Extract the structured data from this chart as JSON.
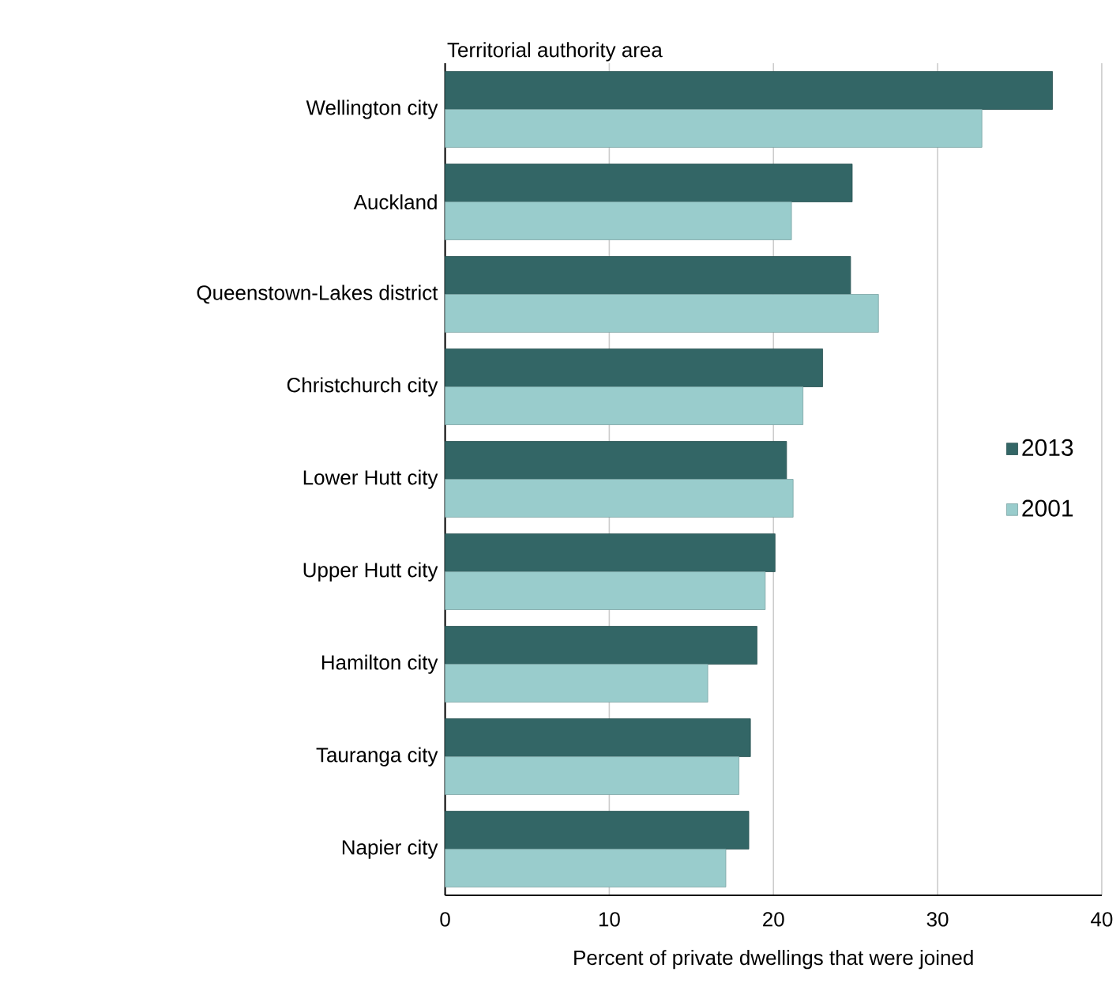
{
  "chart_data": {
    "type": "bar",
    "orientation": "horizontal",
    "ylabel": "Territorial authority area",
    "xlabel": "Percent of private dwellings that were joined",
    "categories": [
      "Wellington city",
      "Auckland",
      "Queenstown-Lakes district",
      "Christchurch city",
      "Lower Hutt city",
      "Upper Hutt city",
      "Hamilton city",
      "Tauranga city",
      "Napier city"
    ],
    "series": [
      {
        "name": "2013",
        "color": "#336666",
        "values": [
          37.0,
          24.8,
          24.7,
          23.0,
          20.8,
          20.1,
          19.0,
          18.6,
          18.5
        ]
      },
      {
        "name": "2001",
        "color": "#99cccc",
        "values": [
          32.7,
          21.1,
          26.4,
          21.8,
          21.2,
          19.5,
          16.0,
          17.9,
          17.1
        ]
      }
    ],
    "xlim": [
      0,
      40
    ],
    "xticks": [
      0,
      10,
      20,
      30,
      40
    ],
    "grid": "x",
    "legend": "right"
  }
}
